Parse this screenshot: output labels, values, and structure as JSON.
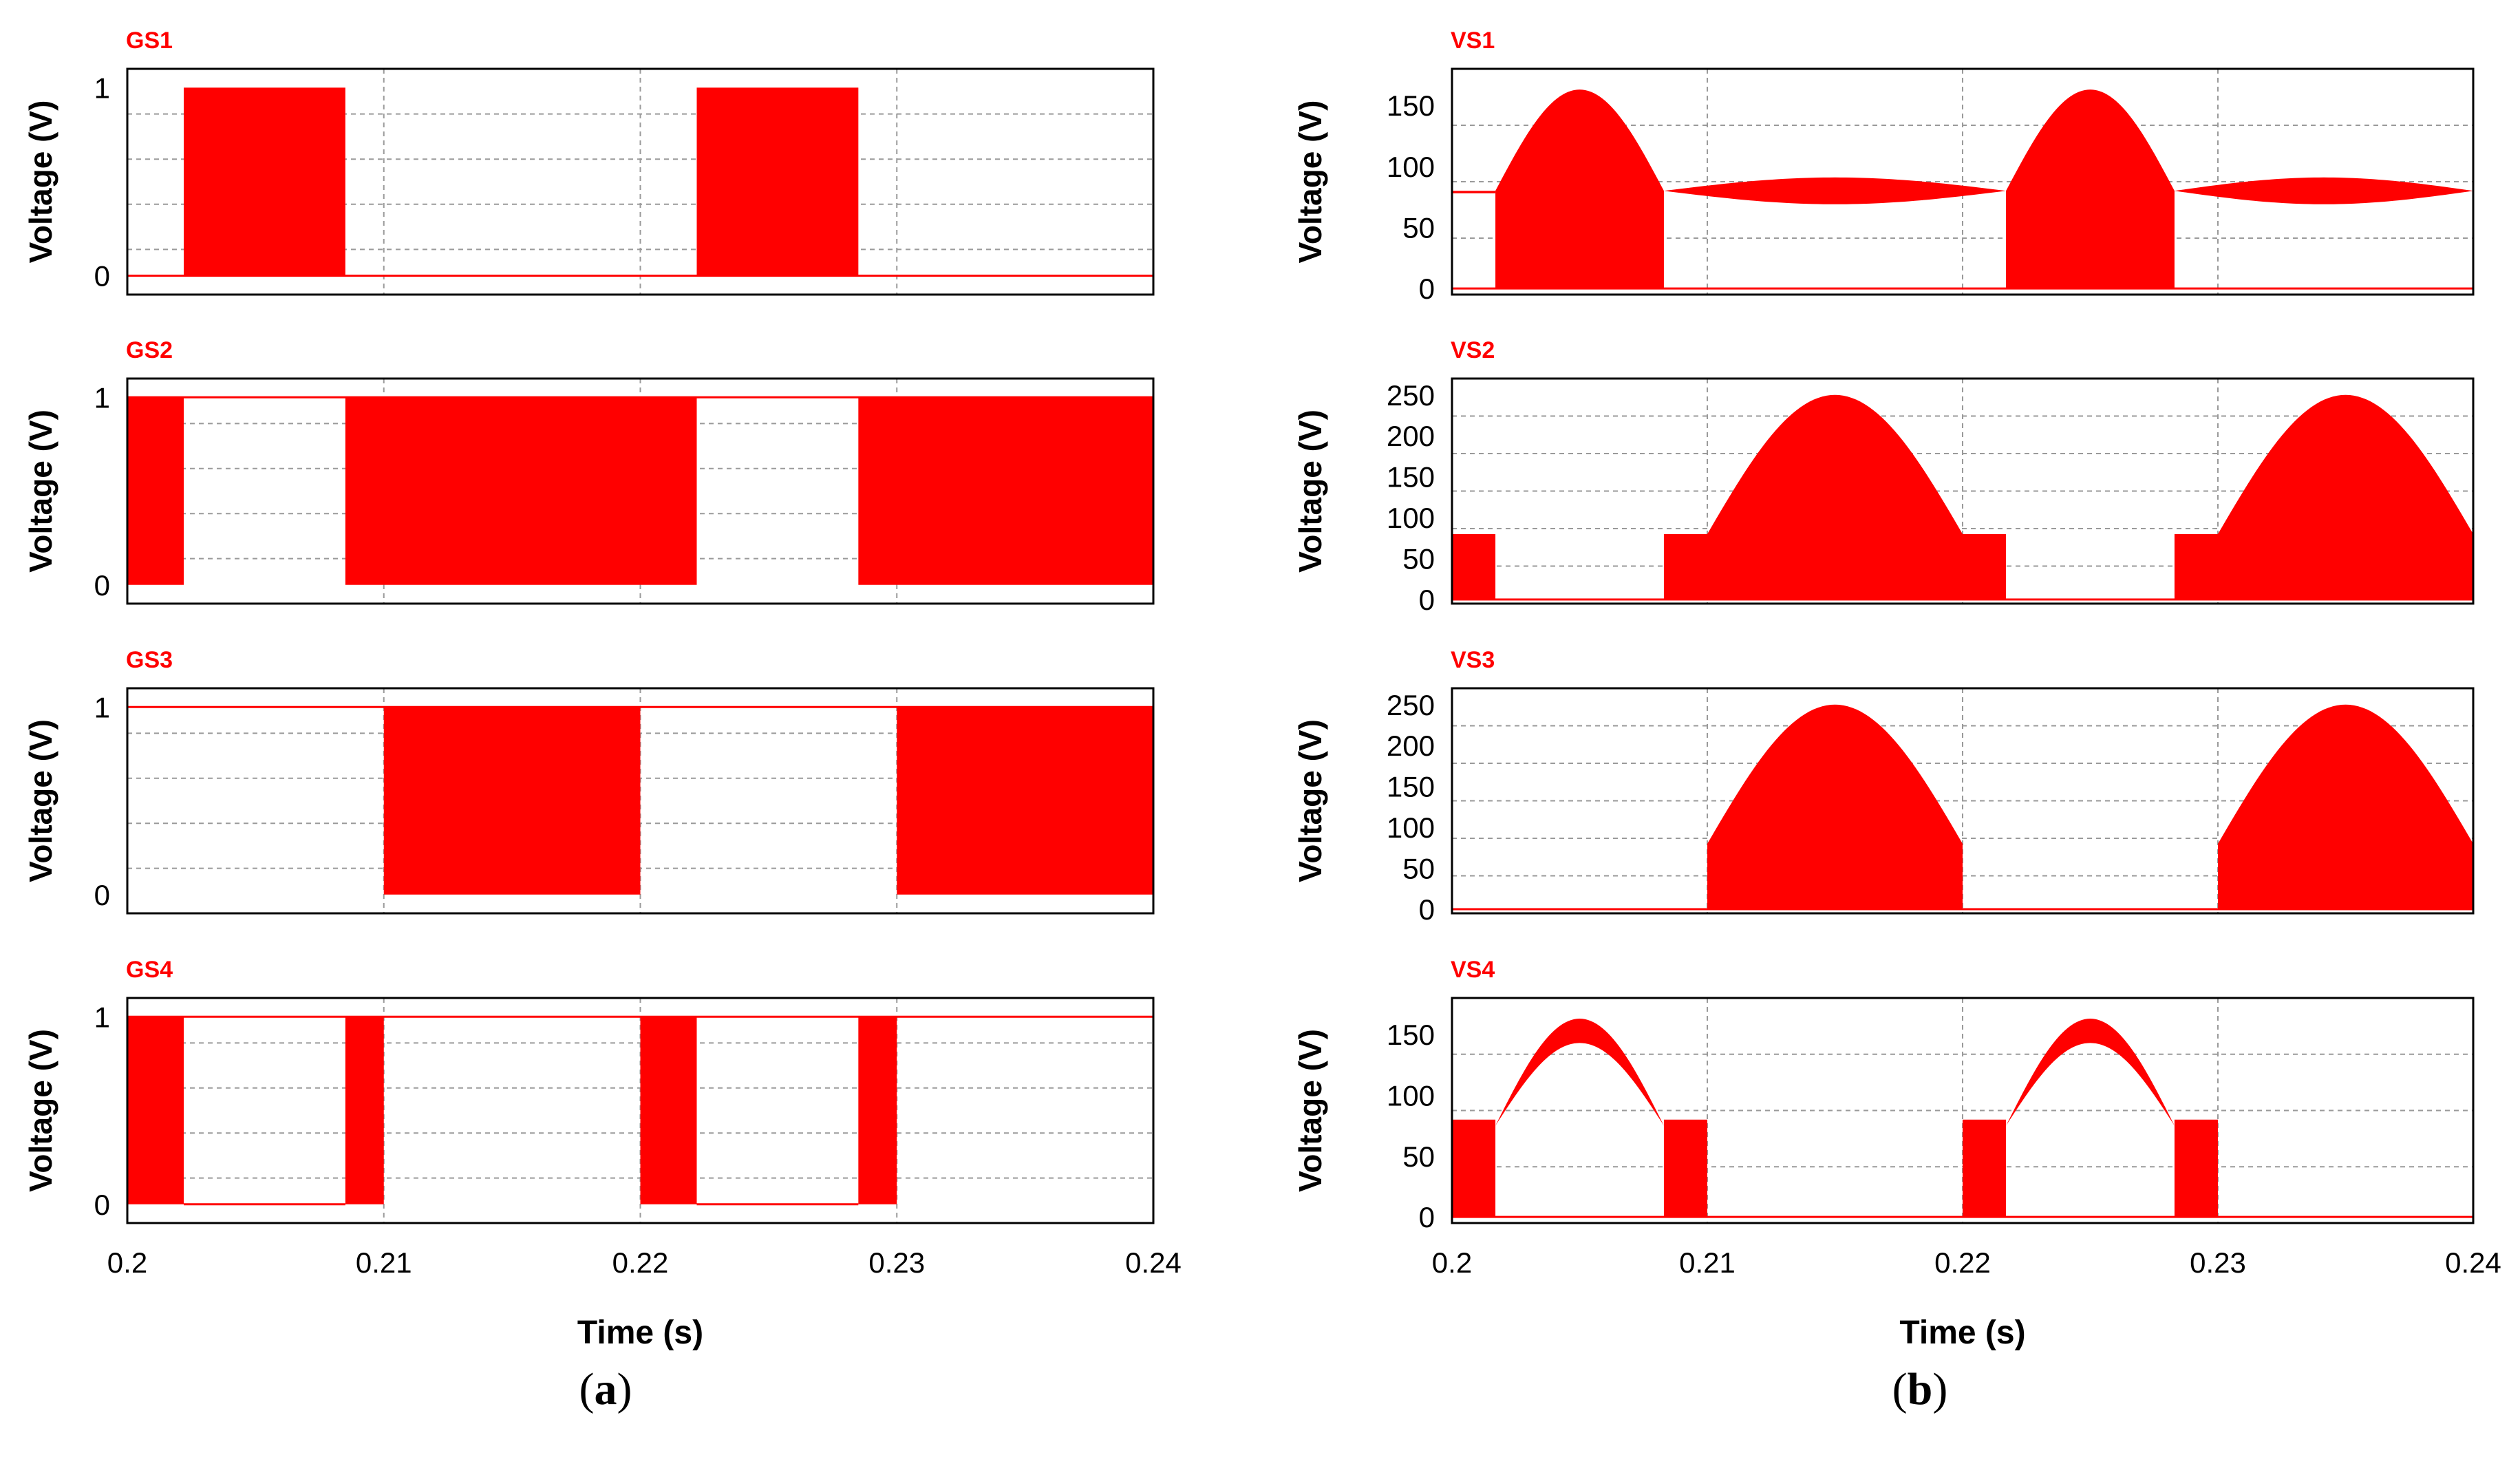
{
  "figure": {
    "captions": {
      "left": "a",
      "right": "b"
    },
    "signal_color": "#ff0000"
  },
  "chart_data": [
    {
      "id": "GS1",
      "type": "line",
      "panel": "a",
      "title": "GS1",
      "ylabel": "Voltage (V)",
      "xlabel": "Time (s)",
      "xlim": [
        0.2,
        0.24
      ],
      "ylim": [
        -0.1,
        1.1
      ],
      "yticks": [
        0,
        1
      ],
      "xticks": [
        0.2,
        0.21,
        0.22,
        0.23,
        0.24
      ],
      "baseline": 0,
      "segments": [
        {
          "type": "pwm",
          "x": [
            0.2022,
            0.2085
          ],
          "low": 0,
          "high": 1
        },
        {
          "type": "pwm",
          "x": [
            0.2222,
            0.2285
          ],
          "low": 0,
          "high": 1
        }
      ]
    },
    {
      "id": "GS2",
      "type": "line",
      "panel": "a",
      "title": "GS2",
      "ylabel": "Voltage (V)",
      "xlabel": "Time (s)",
      "xlim": [
        0.2,
        0.24
      ],
      "ylim": [
        -0.1,
        1.1
      ],
      "yticks": [
        0,
        1
      ],
      "xticks": [
        0.2,
        0.21,
        0.22,
        0.23,
        0.24
      ],
      "baseline": 1,
      "segments": [
        {
          "type": "pwm",
          "x": [
            0.2,
            0.2022
          ],
          "low": 0,
          "high": 1
        },
        {
          "type": "pwm",
          "x": [
            0.2085,
            0.2222
          ],
          "low": 0,
          "high": 1
        },
        {
          "type": "pwm",
          "x": [
            0.2285,
            0.24
          ],
          "low": 0,
          "high": 1
        }
      ]
    },
    {
      "id": "GS3",
      "type": "line",
      "panel": "a",
      "title": "GS3",
      "ylabel": "Voltage (V)",
      "xlabel": "Time (s)",
      "xlim": [
        0.2,
        0.24
      ],
      "ylim": [
        -0.1,
        1.1
      ],
      "yticks": [
        0,
        1
      ],
      "xticks": [
        0.2,
        0.21,
        0.22,
        0.23,
        0.24
      ],
      "baseline": 1,
      "segments": [
        {
          "type": "pwm",
          "x": [
            0.21,
            0.22
          ],
          "low": 0,
          "high": 1
        },
        {
          "type": "pwm",
          "x": [
            0.23,
            0.24
          ],
          "low": 0,
          "high": 1
        }
      ]
    },
    {
      "id": "GS4",
      "type": "line",
      "panel": "a",
      "title": "GS4",
      "ylabel": "Voltage (V)",
      "xlabel": "Time (s)",
      "xlim": [
        0.2,
        0.24
      ],
      "ylim": [
        -0.1,
        1.1
      ],
      "yticks": [
        0,
        1
      ],
      "xticks": [
        0.2,
        0.21,
        0.22,
        0.23,
        0.24
      ],
      "baseline": 1,
      "baseline_ranges": [
        {
          "x": [
            0.2022,
            0.2085
          ],
          "value": 0
        },
        {
          "x": [
            0.2222,
            0.2285
          ],
          "value": 0
        }
      ],
      "segments": [
        {
          "type": "pwm",
          "x": [
            0.2,
            0.2022
          ],
          "low": 0,
          "high": 1
        },
        {
          "type": "pwm",
          "x": [
            0.2085,
            0.21
          ],
          "low": 0,
          "high": 1
        },
        {
          "type": "pwm",
          "x": [
            0.22,
            0.2222
          ],
          "low": 0,
          "high": 1
        },
        {
          "type": "pwm",
          "x": [
            0.2285,
            0.23
          ],
          "low": 0,
          "high": 1
        }
      ]
    },
    {
      "id": "VS1",
      "type": "area",
      "panel": "b",
      "title": "VS1",
      "ylabel": "Voltage (V)",
      "xlabel": "Time (s)",
      "xlim": [
        0.2,
        0.24
      ],
      "ylim": [
        -5,
        180
      ],
      "yticks": [
        0,
        50,
        100,
        150
      ],
      "xticks": [
        0.2,
        0.21,
        0.22,
        0.23,
        0.24
      ],
      "baseline": 0,
      "segments": [
        {
          "type": "band",
          "x": [
            0.2,
            0.2017
          ],
          "low": 78,
          "high": 80
        },
        {
          "type": "hump",
          "x": [
            0.2017,
            0.2083
          ],
          "low": 0,
          "edge": 80,
          "peak": 163
        },
        {
          "type": "spindle",
          "x": [
            0.2083,
            0.2217
          ],
          "center": 80,
          "amp": 11
        },
        {
          "type": "hump",
          "x": [
            0.2217,
            0.2283
          ],
          "low": 0,
          "edge": 80,
          "peak": 163
        },
        {
          "type": "spindle",
          "x": [
            0.2283,
            0.24
          ],
          "center": 80,
          "amp": 11
        }
      ]
    },
    {
      "id": "VS2",
      "type": "area",
      "panel": "b",
      "title": "VS2",
      "ylabel": "Voltage (V)",
      "xlabel": "Time (s)",
      "xlim": [
        0.2,
        0.24
      ],
      "ylim": [
        -5,
        270
      ],
      "yticks": [
        0,
        50,
        100,
        150,
        200,
        250
      ],
      "xticks": [
        0.2,
        0.21,
        0.22,
        0.23,
        0.24
      ],
      "baseline": 0,
      "segments": [
        {
          "type": "pwm",
          "x": [
            0.2,
            0.2017
          ],
          "low": 0,
          "high": 80
        },
        {
          "type": "pwm",
          "x": [
            0.2083,
            0.21
          ],
          "low": 0,
          "high": 80
        },
        {
          "type": "hump",
          "x": [
            0.21,
            0.22
          ],
          "low": 0,
          "edge": 80,
          "peak": 250
        },
        {
          "type": "pwm",
          "x": [
            0.22,
            0.2217
          ],
          "low": 0,
          "high": 80
        },
        {
          "type": "pwm",
          "x": [
            0.2283,
            0.23
          ],
          "low": 0,
          "high": 80
        },
        {
          "type": "hump",
          "x": [
            0.23,
            0.24
          ],
          "low": 0,
          "edge": 80,
          "peak": 250
        }
      ]
    },
    {
      "id": "VS3",
      "type": "area",
      "panel": "b",
      "title": "VS3",
      "ylabel": "Voltage (V)",
      "xlabel": "Time (s)",
      "xlim": [
        0.2,
        0.24
      ],
      "ylim": [
        -5,
        270
      ],
      "yticks": [
        0,
        50,
        100,
        150,
        200,
        250
      ],
      "xticks": [
        0.2,
        0.21,
        0.22,
        0.23,
        0.24
      ],
      "baseline": 0,
      "segments": [
        {
          "type": "hump",
          "x": [
            0.21,
            0.22
          ],
          "low": 0,
          "edge": 80,
          "peak": 250
        },
        {
          "type": "hump",
          "x": [
            0.23,
            0.24
          ],
          "low": 0,
          "edge": 80,
          "peak": 250
        }
      ]
    },
    {
      "id": "VS4",
      "type": "area",
      "panel": "b",
      "title": "VS4",
      "ylabel": "Voltage (V)",
      "xlabel": "Time (s)",
      "xlim": [
        0.2,
        0.24
      ],
      "ylim": [
        -5,
        180
      ],
      "yticks": [
        0,
        50,
        100,
        150
      ],
      "xticks": [
        0.2,
        0.21,
        0.22,
        0.23,
        0.24
      ],
      "baseline": 0,
      "segments": [
        {
          "type": "pwm",
          "x": [
            0.2,
            0.2017
          ],
          "low": 0,
          "high": 80
        },
        {
          "type": "arch",
          "x": [
            0.2017,
            0.2083
          ],
          "edge": 75,
          "peak_top": 163,
          "peak_bottom": 143
        },
        {
          "type": "pwm",
          "x": [
            0.2083,
            0.21
          ],
          "low": 0,
          "high": 80
        },
        {
          "type": "pwm",
          "x": [
            0.22,
            0.2217
          ],
          "low": 0,
          "high": 80
        },
        {
          "type": "arch",
          "x": [
            0.2217,
            0.2283
          ],
          "edge": 75,
          "peak_top": 163,
          "peak_bottom": 143
        },
        {
          "type": "pwm",
          "x": [
            0.2283,
            0.23
          ],
          "low": 0,
          "high": 80
        }
      ]
    }
  ]
}
